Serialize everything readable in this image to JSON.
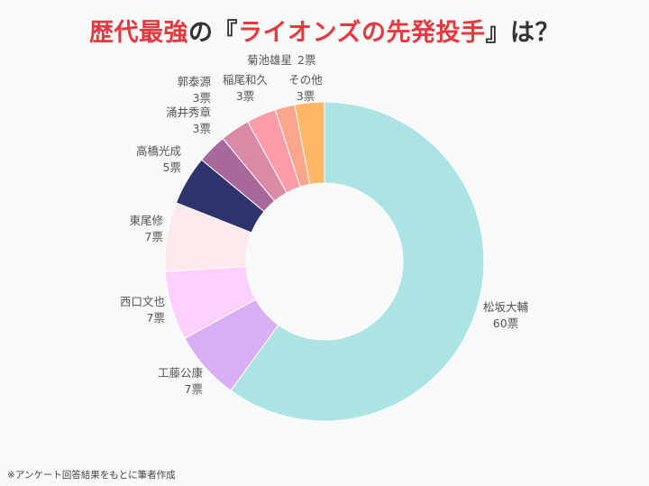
{
  "title": {
    "part1": "歴代最強",
    "part2": "の『",
    "part3": "ライオンズの先発投手",
    "part4": "』は？",
    "accent_color": "#e8383d",
    "text_color": "#333333"
  },
  "footnote": "※アンケート回答結果をもとに筆者作成",
  "chart_data": {
    "type": "pie",
    "variant": "donut",
    "unit": "票",
    "slices": [
      {
        "label": "松坂大輔",
        "value": 60,
        "value_label": "60票",
        "color": "#ace4e3"
      },
      {
        "label": "工藤公康",
        "value": 7,
        "value_label": "7票",
        "color": "#d9aef2"
      },
      {
        "label": "西口文也",
        "value": 7,
        "value_label": "7票",
        "color": "#fdd0fd"
      },
      {
        "label": "東尾修",
        "value": 7,
        "value_label": "7票",
        "color": "#fde8eb"
      },
      {
        "label": "高橋光成",
        "value": 5,
        "value_label": "5票",
        "color": "#2d336b"
      },
      {
        "label": "涌井秀章",
        "value": 3,
        "value_label": "3票",
        "color": "#a8689a"
      },
      {
        "label": "郭泰源",
        "value": 3,
        "value_label": "3票",
        "color": "#d98aa6"
      },
      {
        "label": "稲尾和久",
        "value": 3,
        "value_label": "3票",
        "color": "#fe9da8"
      },
      {
        "label": "菊池雄星",
        "value": 2,
        "value_label": "2票",
        "color": "#fea58e"
      },
      {
        "label": "その他",
        "value": 3,
        "value_label": "3票",
        "color": "#ffb766"
      }
    ]
  }
}
